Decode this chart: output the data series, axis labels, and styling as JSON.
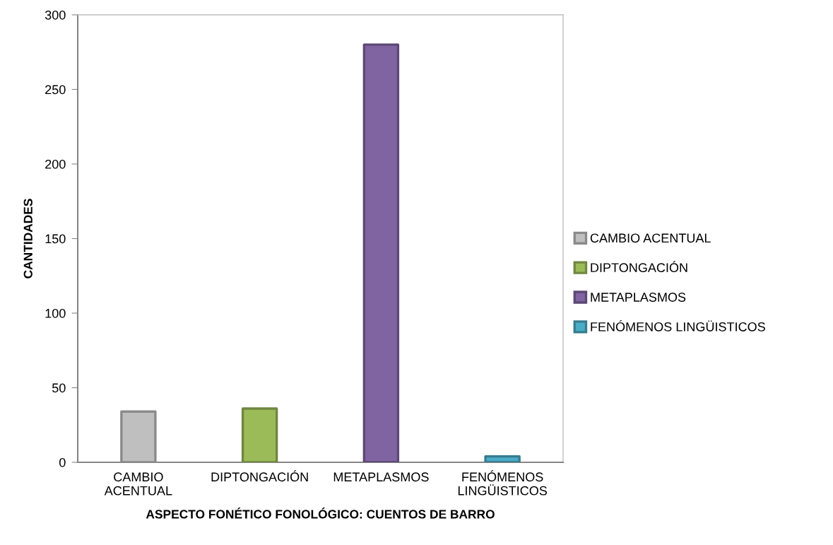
{
  "chart_data": {
    "type": "bar",
    "stacked": true,
    "xlabel": "ASPECTO FONÉTICO FONOLÓGICO: CUENTOS DE BARRO",
    "ylabel": "CANTIDADES",
    "categories": [
      "CAMBIO ACENTUAL",
      "DIPTONGACIÓN",
      "METAPLASMOS",
      "FENÓMENOS LINGÜISTICOS"
    ],
    "series": [
      {
        "name": "CAMBIO ACENTUAL",
        "color": "#bfbfbf",
        "values": [
          34,
          null,
          null,
          null
        ]
      },
      {
        "name": "DIPTONGACIÓN",
        "color": "#9bbb59",
        "values": [
          null,
          36,
          null,
          null
        ]
      },
      {
        "name": "METAPLASMOS",
        "color": "#8064a2",
        "values": [
          null,
          null,
          280,
          null
        ]
      },
      {
        "name": "FENÓMENOS LINGÜISTICOS",
        "color": "#4bacc6",
        "values": [
          null,
          null,
          null,
          4
        ]
      }
    ],
    "ylim": [
      0,
      300
    ],
    "yticks": [
      0,
      50,
      100,
      150,
      200,
      250,
      300
    ],
    "grid": false,
    "legend": "right"
  }
}
